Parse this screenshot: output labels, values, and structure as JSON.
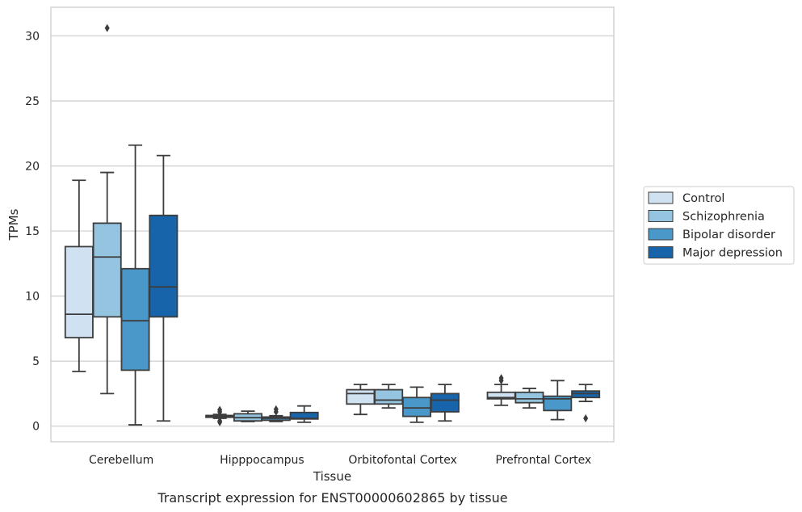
{
  "chart_data": {
    "type": "box",
    "caption": "Transcript expression for ENST00000602865 by tissue",
    "xlabel": "Tissue",
    "ylabel": "TPMs",
    "ylim": [
      -1.2,
      32.2
    ],
    "yticks": [
      0,
      5,
      10,
      15,
      20,
      25,
      30
    ],
    "grid": "horizontal",
    "legend_position": "right",
    "categories": [
      "Cerebellum",
      "Hipppocampus",
      "Orbitofontal Cortex",
      "Prefrontal Cortex"
    ],
    "series": [
      {
        "name": "Control",
        "color": "#d0e1f2",
        "boxes": [
          {
            "whisker_low": 4.2,
            "q1": 6.8,
            "median": 8.6,
            "q3": 13.8,
            "whisker_high": 18.9,
            "outliers": []
          },
          {
            "whisker_low": 0.6,
            "q1": 0.68,
            "median": 0.75,
            "q3": 0.82,
            "whisker_high": 0.9,
            "outliers": [
              0.3,
              0.4,
              1.1,
              1.25
            ]
          },
          {
            "whisker_low": 0.9,
            "q1": 1.7,
            "median": 2.5,
            "q3": 2.8,
            "whisker_high": 3.2,
            "outliers": []
          },
          {
            "whisker_low": 1.6,
            "q1": 2.1,
            "median": 2.2,
            "q3": 2.6,
            "whisker_high": 3.2,
            "outliers": [
              3.5,
              3.7
            ]
          }
        ]
      },
      {
        "name": "Schizophrenia",
        "color": "#94c4df",
        "boxes": [
          {
            "whisker_low": 2.5,
            "q1": 8.4,
            "median": 13.0,
            "q3": 15.6,
            "whisker_high": 19.5,
            "outliers": [
              30.6
            ]
          },
          {
            "whisker_low": 0.35,
            "q1": 0.4,
            "median": 0.65,
            "q3": 0.95,
            "whisker_high": 1.15,
            "outliers": []
          },
          {
            "whisker_low": 1.4,
            "q1": 1.7,
            "median": 2.0,
            "q3": 2.8,
            "whisker_high": 3.2,
            "outliers": []
          },
          {
            "whisker_low": 1.4,
            "q1": 1.8,
            "median": 2.1,
            "q3": 2.6,
            "whisker_high": 2.9,
            "outliers": []
          }
        ]
      },
      {
        "name": "Bipolar disorder",
        "color": "#4a98c9",
        "boxes": [
          {
            "whisker_low": 0.1,
            "q1": 4.3,
            "median": 8.1,
            "q3": 12.1,
            "whisker_high": 21.6,
            "outliers": []
          },
          {
            "whisker_low": 0.35,
            "q1": 0.45,
            "median": 0.6,
            "q3": 0.7,
            "whisker_high": 0.8,
            "outliers": [
              1.1,
              1.3
            ]
          },
          {
            "whisker_low": 0.3,
            "q1": 0.75,
            "median": 1.4,
            "q3": 2.2,
            "whisker_high": 3.0,
            "outliers": []
          },
          {
            "whisker_low": 0.5,
            "q1": 1.2,
            "median": 2.1,
            "q3": 2.3,
            "whisker_high": 3.5,
            "outliers": []
          }
        ]
      },
      {
        "name": "Major depression",
        "color": "#1764ab",
        "boxes": [
          {
            "whisker_low": 0.4,
            "q1": 8.4,
            "median": 10.7,
            "q3": 16.2,
            "whisker_high": 20.8,
            "outliers": []
          },
          {
            "whisker_low": 0.3,
            "q1": 0.55,
            "median": 0.6,
            "q3": 1.05,
            "whisker_high": 1.55,
            "outliers": []
          },
          {
            "whisker_low": 0.4,
            "q1": 1.1,
            "median": 2.0,
            "q3": 2.5,
            "whisker_high": 3.2,
            "outliers": []
          },
          {
            "whisker_low": 1.9,
            "q1": 2.2,
            "median": 2.5,
            "q3": 2.7,
            "whisker_high": 3.2,
            "outliers": [
              0.6
            ]
          }
        ]
      }
    ]
  }
}
